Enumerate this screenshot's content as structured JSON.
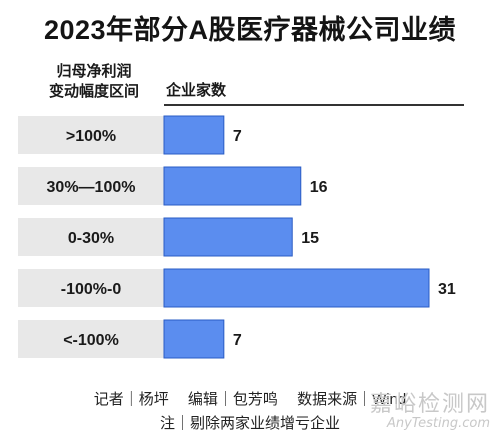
{
  "title": "2023年部分A股医疗器械公司业绩",
  "header": {
    "category_label_line1": "归母净利润",
    "category_label_line2": "变动幅度区间",
    "value_label": "企业家数"
  },
  "chart_data": {
    "type": "bar",
    "orientation": "horizontal",
    "categories": [
      ">100%",
      "30%—100%",
      "0-30%",
      "-100%-0",
      "<-100%"
    ],
    "values": [
      7,
      16,
      15,
      31,
      7
    ],
    "xlim": [
      0,
      31
    ],
    "grid": false,
    "colors": {
      "bar": "#5b8def",
      "bar_border": "#2a5cc4",
      "label_band": "#e8e8e8"
    }
  },
  "footer": {
    "credits": "记者｜杨坪　 编辑｜包芳鸣　 数据来源｜Wind",
    "note": "注｜剔除两家业绩增亏企业"
  },
  "watermark": {
    "main": "嘉峪检测网",
    "sub": "AnyTesting.com"
  }
}
